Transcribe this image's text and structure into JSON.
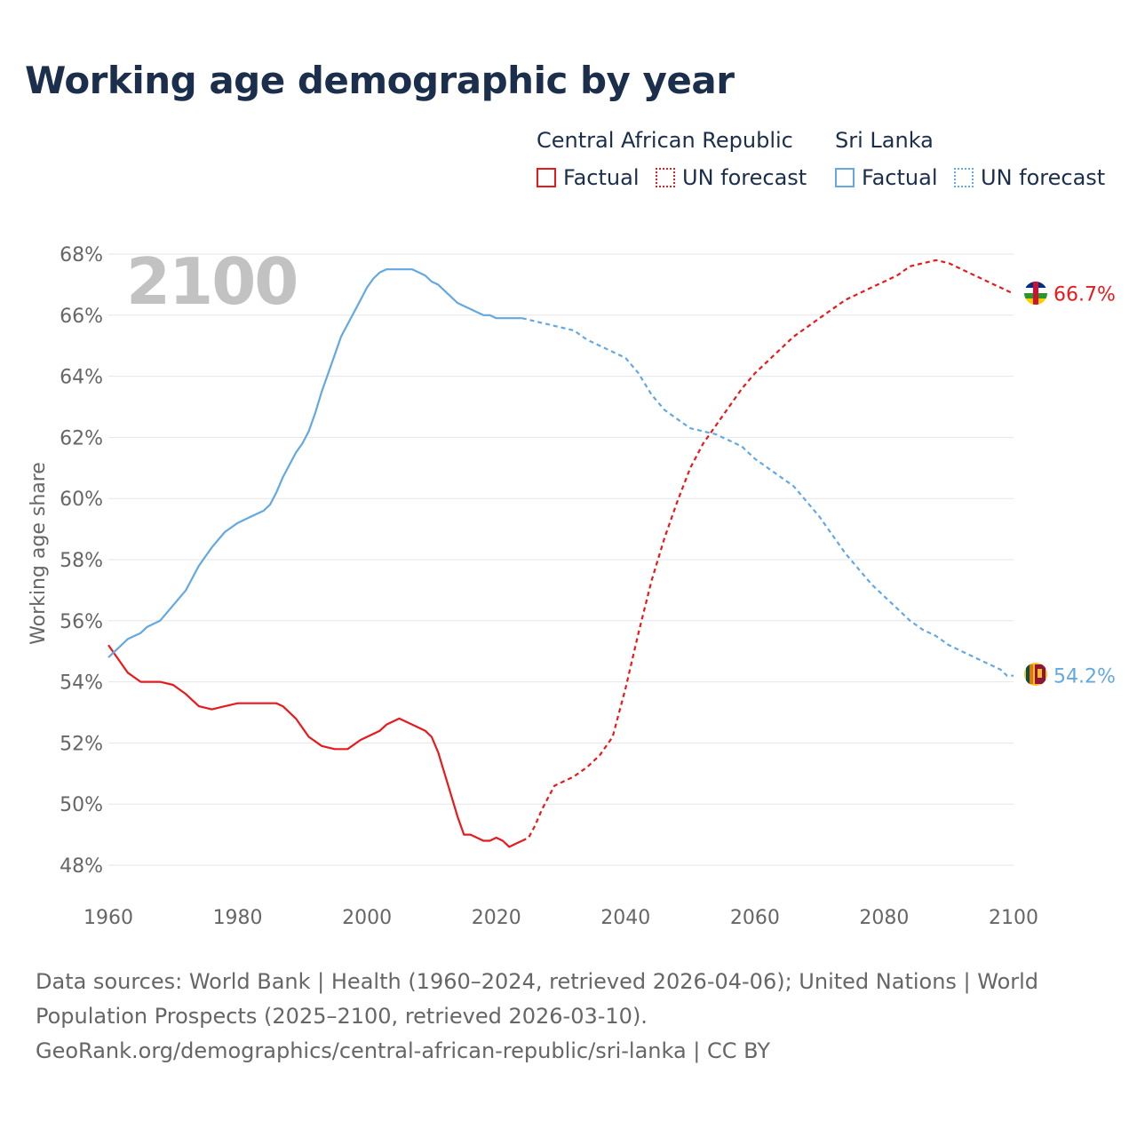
{
  "title": "Working age demographic by year",
  "legend": {
    "group1": {
      "name": "Central African Republic",
      "factual": "Factual",
      "forecast": "UN forecast"
    },
    "group2": {
      "name": "Sri Lanka",
      "factual": "Factual",
      "forecast": "UN forecast"
    }
  },
  "year_overlay": "2100",
  "footer": {
    "line1": "Data sources: World Bank | Health (1960–2024, retrieved 2026-04-06); United Nations | World",
    "line2": "Population Prospects (2025–2100, retrieved 2026-03-10).",
    "line3": "GeoRank.org/demographics/central-african-republic/sri-lanka | CC BY"
  },
  "colors": {
    "car": "#e8191c",
    "lk": "#64a8e2",
    "grid": "#e6e6e6",
    "axis_text": "#666666",
    "overlay": "#c2c2c2"
  },
  "chart_data": {
    "type": "line",
    "xlabel": "",
    "ylabel": "Working age share",
    "xlim": [
      1960,
      2100
    ],
    "ylim": [
      47,
      68.4
    ],
    "x_ticks": [
      1960,
      1980,
      2000,
      2020,
      2040,
      2060,
      2080,
      2100
    ],
    "x_tick_labels": [
      "1960",
      "1980",
      "2000",
      "2020",
      "2040",
      "2060",
      "2080",
      "2100"
    ],
    "y_ticks": [
      48,
      50,
      52,
      54,
      56,
      58,
      60,
      62,
      64,
      66,
      68
    ],
    "y_tick_labels": [
      "48%",
      "50%",
      "52%",
      "54%",
      "56%",
      "58%",
      "60%",
      "62%",
      "64%",
      "66%",
      "68%"
    ],
    "series": [
      {
        "name": "Central African Republic",
        "end_label": "66.7%",
        "factual": [
          [
            1960,
            55.2
          ],
          [
            1962,
            54.6
          ],
          [
            1963,
            54.3
          ],
          [
            1965,
            54.0
          ],
          [
            1967,
            54.0
          ],
          [
            1968,
            54.0
          ],
          [
            1970,
            53.9
          ],
          [
            1972,
            53.6
          ],
          [
            1974,
            53.2
          ],
          [
            1976,
            53.1
          ],
          [
            1978,
            53.2
          ],
          [
            1980,
            53.3
          ],
          [
            1982,
            53.3
          ],
          [
            1984,
            53.3
          ],
          [
            1986,
            53.3
          ],
          [
            1987,
            53.2
          ],
          [
            1989,
            52.8
          ],
          [
            1991,
            52.2
          ],
          [
            1993,
            51.9
          ],
          [
            1995,
            51.8
          ],
          [
            1997,
            51.8
          ],
          [
            1999,
            52.1
          ],
          [
            2001,
            52.3
          ],
          [
            2002,
            52.4
          ],
          [
            2003,
            52.6
          ],
          [
            2005,
            52.8
          ],
          [
            2007,
            52.6
          ],
          [
            2009,
            52.4
          ],
          [
            2010,
            52.2
          ],
          [
            2011,
            51.7
          ],
          [
            2012,
            51.0
          ],
          [
            2013,
            50.3
          ],
          [
            2014,
            49.6
          ],
          [
            2015,
            49.0
          ],
          [
            2016,
            49.0
          ],
          [
            2017,
            48.9
          ],
          [
            2018,
            48.8
          ],
          [
            2019,
            48.8
          ],
          [
            2020,
            48.9
          ],
          [
            2021,
            48.8
          ],
          [
            2022,
            48.6
          ],
          [
            2023,
            48.7
          ],
          [
            2024,
            48.8
          ]
        ],
        "forecast": [
          [
            2024,
            48.8
          ],
          [
            2025,
            48.9
          ],
          [
            2026,
            49.3
          ],
          [
            2027,
            49.8
          ],
          [
            2028,
            50.2
          ],
          [
            2029,
            50.6
          ],
          [
            2030,
            50.7
          ],
          [
            2032,
            50.9
          ],
          [
            2034,
            51.2
          ],
          [
            2036,
            51.6
          ],
          [
            2038,
            52.2
          ],
          [
            2040,
            53.8
          ],
          [
            2042,
            55.6
          ],
          [
            2044,
            57.3
          ],
          [
            2046,
            58.7
          ],
          [
            2048,
            59.9
          ],
          [
            2050,
            61.0
          ],
          [
            2052,
            61.8
          ],
          [
            2054,
            62.4
          ],
          [
            2056,
            63.0
          ],
          [
            2058,
            63.6
          ],
          [
            2060,
            64.1
          ],
          [
            2062,
            64.5
          ],
          [
            2064,
            64.9
          ],
          [
            2066,
            65.3
          ],
          [
            2068,
            65.6
          ],
          [
            2070,
            65.9
          ],
          [
            2072,
            66.2
          ],
          [
            2074,
            66.5
          ],
          [
            2076,
            66.7
          ],
          [
            2078,
            66.9
          ],
          [
            2080,
            67.1
          ],
          [
            2082,
            67.3
          ],
          [
            2084,
            67.6
          ],
          [
            2086,
            67.7
          ],
          [
            2088,
            67.8
          ],
          [
            2090,
            67.7
          ],
          [
            2092,
            67.5
          ],
          [
            2094,
            67.3
          ],
          [
            2096,
            67.1
          ],
          [
            2098,
            66.9
          ],
          [
            2100,
            66.7
          ]
        ]
      },
      {
        "name": "Sri Lanka",
        "end_label": "54.2%",
        "factual": [
          [
            1960,
            54.8
          ],
          [
            1961,
            55.0
          ],
          [
            1962,
            55.2
          ],
          [
            1963,
            55.4
          ],
          [
            1965,
            55.6
          ],
          [
            1966,
            55.8
          ],
          [
            1968,
            56.0
          ],
          [
            1970,
            56.5
          ],
          [
            1972,
            57.0
          ],
          [
            1973,
            57.4
          ],
          [
            1974,
            57.8
          ],
          [
            1976,
            58.4
          ],
          [
            1978,
            58.9
          ],
          [
            1980,
            59.2
          ],
          [
            1982,
            59.4
          ],
          [
            1984,
            59.6
          ],
          [
            1985,
            59.8
          ],
          [
            1986,
            60.2
          ],
          [
            1987,
            60.7
          ],
          [
            1988,
            61.1
          ],
          [
            1989,
            61.5
          ],
          [
            1990,
            61.8
          ],
          [
            1991,
            62.2
          ],
          [
            1992,
            62.8
          ],
          [
            1993,
            63.5
          ],
          [
            1994,
            64.1
          ],
          [
            1995,
            64.7
          ],
          [
            1996,
            65.3
          ],
          [
            1997,
            65.7
          ],
          [
            1998,
            66.1
          ],
          [
            1999,
            66.5
          ],
          [
            2000,
            66.9
          ],
          [
            2001,
            67.2
          ],
          [
            2002,
            67.4
          ],
          [
            2003,
            67.5
          ],
          [
            2004,
            67.5
          ],
          [
            2005,
            67.5
          ],
          [
            2006,
            67.5
          ],
          [
            2007,
            67.5
          ],
          [
            2008,
            67.4
          ],
          [
            2009,
            67.3
          ],
          [
            2010,
            67.1
          ],
          [
            2011,
            67.0
          ],
          [
            2012,
            66.8
          ],
          [
            2013,
            66.6
          ],
          [
            2014,
            66.4
          ],
          [
            2015,
            66.3
          ],
          [
            2016,
            66.2
          ],
          [
            2017,
            66.1
          ],
          [
            2018,
            66.0
          ],
          [
            2019,
            66.0
          ],
          [
            2020,
            65.9
          ],
          [
            2022,
            65.9
          ],
          [
            2024,
            65.9
          ]
        ],
        "forecast": [
          [
            2024,
            65.9
          ],
          [
            2026,
            65.8
          ],
          [
            2028,
            65.7
          ],
          [
            2030,
            65.6
          ],
          [
            2032,
            65.5
          ],
          [
            2034,
            65.2
          ],
          [
            2036,
            65.0
          ],
          [
            2038,
            64.8
          ],
          [
            2040,
            64.6
          ],
          [
            2042,
            64.1
          ],
          [
            2044,
            63.4
          ],
          [
            2046,
            62.9
          ],
          [
            2048,
            62.6
          ],
          [
            2050,
            62.3
          ],
          [
            2052,
            62.2
          ],
          [
            2054,
            62.1
          ],
          [
            2056,
            61.9
          ],
          [
            2058,
            61.7
          ],
          [
            2060,
            61.3
          ],
          [
            2062,
            61.0
          ],
          [
            2064,
            60.7
          ],
          [
            2066,
            60.4
          ],
          [
            2068,
            59.9
          ],
          [
            2070,
            59.4
          ],
          [
            2072,
            58.8
          ],
          [
            2074,
            58.2
          ],
          [
            2076,
            57.7
          ],
          [
            2078,
            57.2
          ],
          [
            2080,
            56.8
          ],
          [
            2082,
            56.4
          ],
          [
            2084,
            56.0
          ],
          [
            2086,
            55.7
          ],
          [
            2088,
            55.5
          ],
          [
            2090,
            55.2
          ],
          [
            2092,
            55.0
          ],
          [
            2094,
            54.8
          ],
          [
            2096,
            54.6
          ],
          [
            2098,
            54.4
          ],
          [
            2099,
            54.2
          ],
          [
            2100,
            54.2
          ]
        ]
      }
    ]
  }
}
